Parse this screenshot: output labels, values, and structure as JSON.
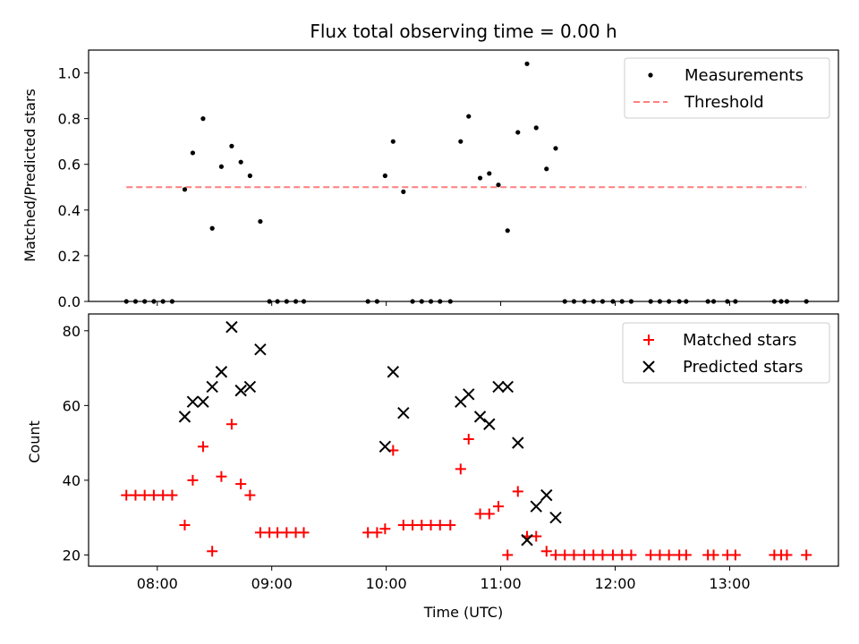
{
  "chart_data": [
    {
      "type": "scatter",
      "title": "Flux total observing time = 0.00 h",
      "ylabel": "Matched/Predicted stars",
      "xlim": [
        7.4,
        13.95
      ],
      "ylim": [
        0,
        1.1
      ],
      "yticks": [
        0.0,
        0.2,
        0.4,
        0.6,
        0.8,
        1.0
      ],
      "yticklabels": [
        "0.0",
        "0.2",
        "0.4",
        "0.6",
        "0.8",
        "1.0"
      ],
      "legend": [
        "Measurements",
        "Threshold"
      ],
      "legend_position": "top-right",
      "threshold": {
        "name": "Threshold",
        "y": 0.5,
        "x_start": 7.73,
        "x_end": 13.67,
        "color": "#ff7f7f"
      },
      "series": [
        {
          "name": "Measurements",
          "color": "#000000",
          "x": [
            7.73,
            7.81,
            7.89,
            7.97,
            8.05,
            8.13,
            8.24,
            8.31,
            8.4,
            8.48,
            8.56,
            8.65,
            8.73,
            8.81,
            8.9,
            8.98,
            9.05,
            9.13,
            9.21,
            9.28,
            9.84,
            9.92,
            9.99,
            10.06,
            10.15,
            10.23,
            10.31,
            10.39,
            10.47,
            10.56,
            10.65,
            10.72,
            10.82,
            10.9,
            10.98,
            11.06,
            11.15,
            11.23,
            11.31,
            11.4,
            11.48,
            11.56,
            11.64,
            11.73,
            11.81,
            11.89,
            11.98,
            12.06,
            12.14,
            12.31,
            12.39,
            12.47,
            12.56,
            12.62,
            12.81,
            12.86,
            12.98,
            13.05,
            13.39,
            13.45,
            13.5,
            13.67
          ],
          "y": [
            0,
            0,
            0,
            0,
            0,
            0,
            0.49,
            0.65,
            0.8,
            0.32,
            0.59,
            0.68,
            0.61,
            0.55,
            0.35,
            0,
            0,
            0,
            0,
            0,
            0,
            0,
            0.55,
            0.7,
            0.48,
            0,
            0,
            0,
            0,
            0,
            0.7,
            0.81,
            0.54,
            0.56,
            0.51,
            0.31,
            0.74,
            1.04,
            0.76,
            0.58,
            0.67,
            0,
            0,
            0,
            0,
            0,
            0,
            0,
            0,
            0,
            0,
            0,
            0,
            0,
            0,
            0,
            0,
            0,
            0,
            0,
            0,
            0
          ]
        }
      ]
    },
    {
      "type": "scatter",
      "xlabel": "Time (UTC)",
      "ylabel": "Count",
      "xlim": [
        7.4,
        13.95
      ],
      "ylim": [
        17,
        84.5
      ],
      "xticks": [
        8,
        9,
        10,
        11,
        12,
        13
      ],
      "xticklabels": [
        "08:00",
        "09:00",
        "10:00",
        "11:00",
        "12:00",
        "13:00"
      ],
      "yticks": [
        20,
        40,
        60,
        80
      ],
      "yticklabels": [
        "20",
        "40",
        "60",
        "80"
      ],
      "legend": [
        "Matched stars",
        "Predicted stars"
      ],
      "legend_position": "top-right",
      "series": [
        {
          "name": "Matched stars",
          "marker": "+",
          "color": "#ff0000",
          "x": [
            7.73,
            7.81,
            7.89,
            7.97,
            8.05,
            8.13,
            8.24,
            8.31,
            8.4,
            8.48,
            8.56,
            8.65,
            8.73,
            8.81,
            8.9,
            8.98,
            9.05,
            9.13,
            9.21,
            9.28,
            9.84,
            9.92,
            9.99,
            10.06,
            10.15,
            10.23,
            10.31,
            10.39,
            10.47,
            10.56,
            10.65,
            10.72,
            10.82,
            10.9,
            10.98,
            11.06,
            11.15,
            11.23,
            11.31,
            11.4,
            11.48,
            11.56,
            11.64,
            11.73,
            11.81,
            11.89,
            11.98,
            12.06,
            12.14,
            12.31,
            12.39,
            12.47,
            12.56,
            12.62,
            12.81,
            12.86,
            12.98,
            13.05,
            13.39,
            13.45,
            13.5,
            13.67
          ],
          "y": [
            36,
            36,
            36,
            36,
            36,
            36,
            28,
            40,
            49,
            21,
            41,
            55,
            39,
            36,
            26,
            26,
            26,
            26,
            26,
            26,
            26,
            26,
            27,
            48,
            28,
            28,
            28,
            28,
            28,
            28,
            43,
            51,
            31,
            31,
            33,
            20,
            37,
            25,
            25,
            21,
            20,
            20,
            20,
            20,
            20,
            20,
            20,
            20,
            20,
            20,
            20,
            20,
            20,
            20,
            20,
            20,
            20,
            20,
            20,
            20,
            20,
            20
          ]
        },
        {
          "name": "Predicted stars",
          "marker": "x",
          "color": "#000000",
          "x": [
            8.24,
            8.31,
            8.4,
            8.48,
            8.56,
            8.65,
            8.73,
            8.81,
            8.9,
            9.99,
            10.06,
            10.15,
            10.65,
            10.72,
            10.82,
            10.9,
            10.98,
            11.06,
            11.15,
            11.23,
            11.31,
            11.4,
            11.48
          ],
          "y": [
            57,
            61,
            61,
            65,
            69,
            81,
            64,
            65,
            75,
            49,
            69,
            58,
            61,
            63,
            57,
            55,
            65,
            65,
            50,
            24,
            33,
            36,
            30
          ]
        }
      ]
    }
  ]
}
